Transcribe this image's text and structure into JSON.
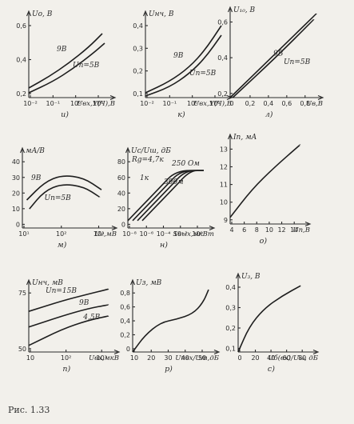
{
  "figure": {
    "caption": "Рис. 1.33"
  },
  "panels": [
    {
      "letter": "и)",
      "ylabel": "Uo, B",
      "xlabel": "Uвх,У(Ч),В",
      "yticks": [
        "0,6",
        "0,4",
        "0,2"
      ],
      "xticks": [
        "10⁻²",
        "10⁻¹",
        "10⁰",
        "10¹"
      ],
      "curve_labels": [
        "9В",
        "Uп=5В"
      ]
    },
    {
      "letter": "к)",
      "ylabel": "Uнч, В",
      "xlabel": "Uвх,У(Ч),В",
      "yticks": [
        "0,4",
        "0,3",
        "0,2",
        "0,1"
      ],
      "xticks": [
        "10⁻²",
        "10⁻¹",
        "10⁰",
        "10¹"
      ],
      "curve_labels": [
        "9В",
        "Uп=5В"
      ]
    },
    {
      "letter": "л)",
      "ylabel": "U₁₀, В",
      "xlabel": "Uв,В",
      "yticks": [
        "0,6",
        "0,4",
        "0,2"
      ],
      "xticks": [
        "0",
        "0,2",
        "0,4",
        "0,6",
        "0,8"
      ],
      "curve_labels": [
        "9В",
        "Uп=5В"
      ]
    },
    {
      "letter": "м)",
      "ylabel": "мА/В",
      "xlabel": "Uг,мВ",
      "yticks": [
        "40",
        "30",
        "20",
        "10",
        "0"
      ],
      "xticks": [
        "10¹",
        "10²",
        "10³"
      ],
      "curve_labels": [
        "9В",
        "Uп=5В"
      ]
    },
    {
      "letter": "н)",
      "ylabel": "Uс/Uш, дБ",
      "xlabel": "Sвых,мкВт",
      "yticks": [
        "80",
        "60",
        "40",
        "20",
        "0"
      ],
      "xticks": [
        "10⁻⁸",
        "10⁻⁶",
        "10⁻⁴",
        "10⁻²",
        "10⁰"
      ],
      "curve_labels": [
        "Rg=4,7к",
        "250 Ом",
        "1к",
        "300м"
      ]
    },
    {
      "letter": "о)",
      "ylabel": "Iп, мА",
      "xlabel": "Uп,В",
      "yticks": [
        "13",
        "12",
        "11",
        "10",
        "9"
      ],
      "xticks": [
        "4",
        "6",
        "8",
        "10",
        "12",
        "14"
      ],
      "curve_labels": []
    },
    {
      "letter": "п)",
      "ylabel": "Uнч, мВ",
      "xlabel": "Uвх,мкВ",
      "yticks": [
        "75",
        "50"
      ],
      "xticks": [
        "10",
        "10²",
        "10³"
      ],
      "curve_labels": [
        "Uп=15В",
        "9В",
        "4,5В"
      ]
    },
    {
      "letter": "р)",
      "ylabel": "Uз, мВ",
      "xlabel": "Uпвх/Uт,дБ",
      "yticks": [
        "0,8",
        "0,6",
        "0,4",
        "0,2",
        "0"
      ],
      "xticks": [
        "10",
        "20",
        "30",
        "40",
        "50"
      ],
      "curve_labels": []
    },
    {
      "letter": "с)",
      "ylabel": "U₃, В",
      "xlabel": "Uб(вх)/U₁₀, дБ",
      "yticks": [
        "0,4",
        "0,3",
        "0,2",
        "0,1"
      ],
      "xticks": [
        "0",
        "20",
        "40",
        "60",
        "80"
      ],
      "curve_labels": []
    }
  ]
}
